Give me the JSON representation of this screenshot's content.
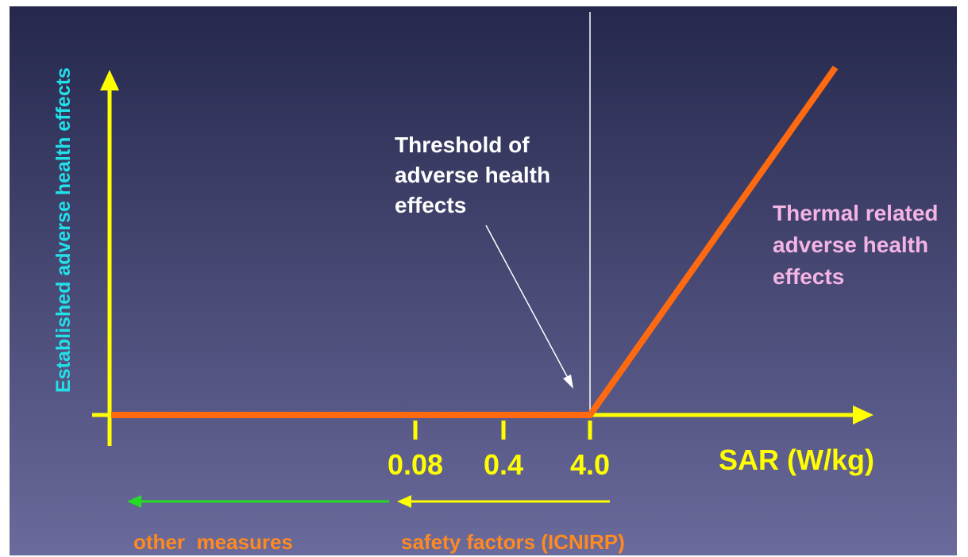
{
  "y_axis_label": "Established adverse health effects",
  "x_axis_label": "SAR (W/kg)",
  "tick_labels": [
    "0.08",
    "0.4",
    "4.0"
  ],
  "threshold_label": [
    "Threshold of",
    "adverse health",
    "effects"
  ],
  "thermal_label": [
    "Thermal related",
    "adverse health",
    "effects"
  ],
  "range_labels": {
    "other": "other  measures",
    "safety": "safety factors (ICNIRP)"
  }
}
